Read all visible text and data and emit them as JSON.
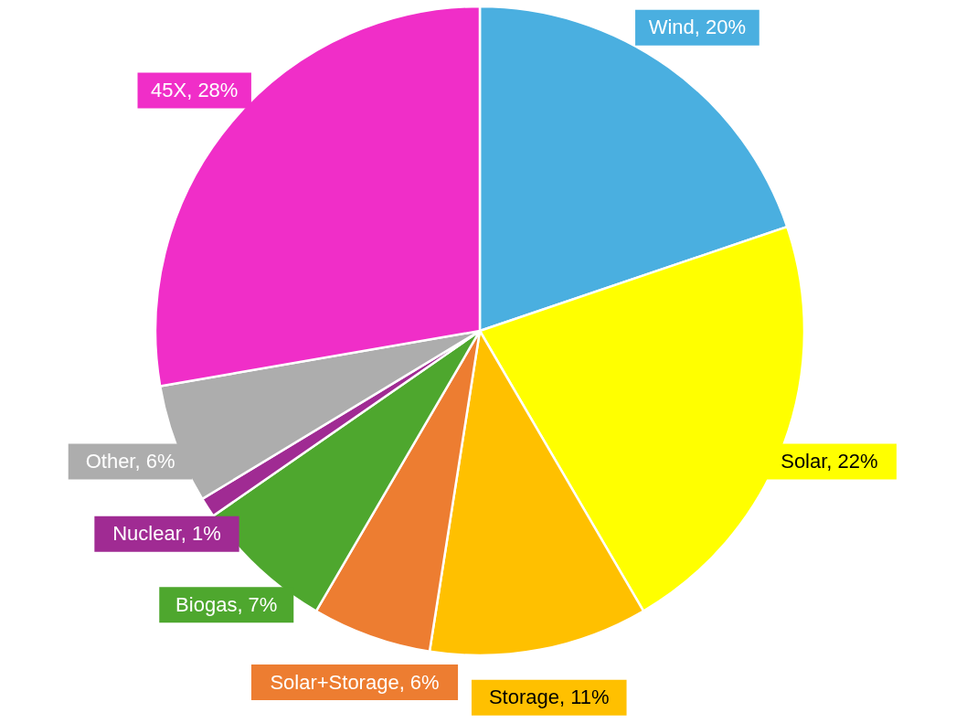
{
  "chart_data": {
    "type": "pie",
    "categories": [
      "Wind",
      "Solar",
      "Storage",
      "Solar+Storage",
      "Biogas",
      "Nuclear",
      "Other",
      "45X"
    ],
    "values": [
      20,
      22,
      11,
      6,
      7,
      1,
      6,
      28
    ],
    "colors": [
      "#4aafe0",
      "#ffff00",
      "#ffc000",
      "#ed7d31",
      "#4ea72e",
      "#a02b93",
      "#adadad",
      "#f02ec8"
    ],
    "value_labels": [
      "20%",
      "22%",
      "11%",
      "6%",
      "7%",
      "1%",
      "6%",
      "28%"
    ]
  }
}
